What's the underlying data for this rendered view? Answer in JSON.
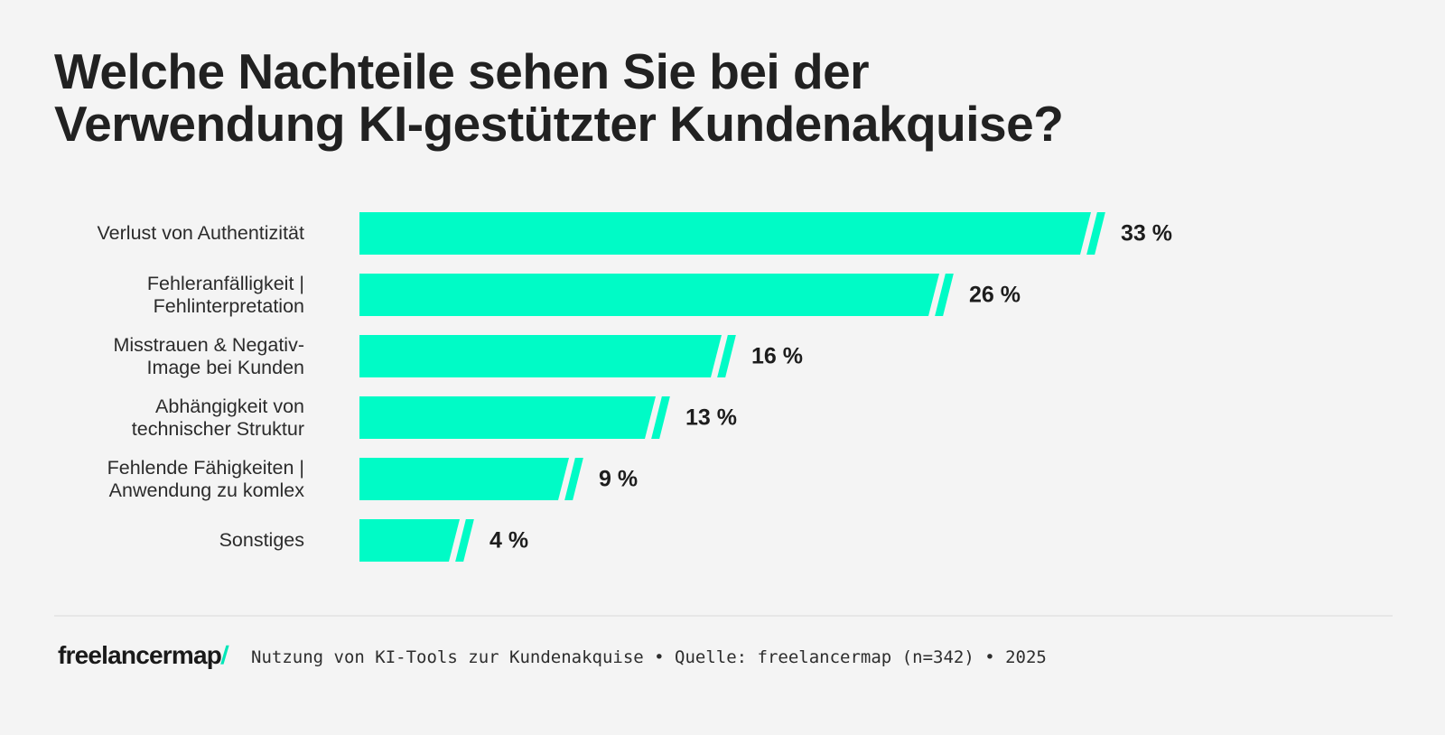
{
  "title": {
    "line1": "Welche Nachteile sehen Sie bei der",
    "line2": "Verwendung KI-gestützter Kundenakquise?"
  },
  "chart_data": {
    "type": "bar",
    "orientation": "horizontal",
    "title": "Welche Nachteile sehen Sie bei der Verwendung KI-gestützter Kundenakquise?",
    "unit": "%",
    "categories": [
      "Verlust von Authentizität",
      "Fehleranfälligkeit | Fehlinterpretation",
      "Misstrauen & Negativ-Image bei Kunden",
      "Abhängigkeit von technischer Struktur",
      "Fehlende Fähigkeiten | Anwendung zu komlex",
      "Sonstiges"
    ],
    "values": [
      33,
      26,
      16,
      13,
      9,
      4
    ],
    "xlim": [
      0,
      35
    ],
    "grid": false,
    "legend": false,
    "bar_color": "#00fbc6",
    "rows": [
      {
        "lines": [
          "Verlust von Authentizität",
          ""
        ],
        "value": 33,
        "value_label": "33 %"
      },
      {
        "lines": [
          "Fehleranfälligkeit |",
          "Fehlinterpretation"
        ],
        "value": 26,
        "value_label": "26 %"
      },
      {
        "lines": [
          "Misstrauen & Negativ-",
          "Image bei Kunden"
        ],
        "value": 16,
        "value_label": "16 %"
      },
      {
        "lines": [
          "Abhängigkeit von",
          "technischer Struktur"
        ],
        "value": 13,
        "value_label": "13 %"
      },
      {
        "lines": [
          "Fehlende Fähigkeiten |",
          "Anwendung zu komlex"
        ],
        "value": 9,
        "value_label": "9 %"
      },
      {
        "lines": [
          "Sonstiges",
          ""
        ],
        "value": 4,
        "value_label": "4 %"
      }
    ]
  },
  "footer": {
    "logo_text": "freelancermap",
    "logo_slash": "/",
    "source_text": "Nutzung von KI-Tools zur Kundenakquise • Quelle: freelancermap (n=342) • 2025"
  },
  "colors": {
    "background": "#f4f4f4",
    "bar": "#00fbc6",
    "title_text": "#212121",
    "label_text": "#2b2b2b",
    "value_text": "#1d1d1d",
    "divider": "#e7e7e7",
    "logo_slash": "#00e6b8",
    "source_text": "#2d2d2d"
  }
}
